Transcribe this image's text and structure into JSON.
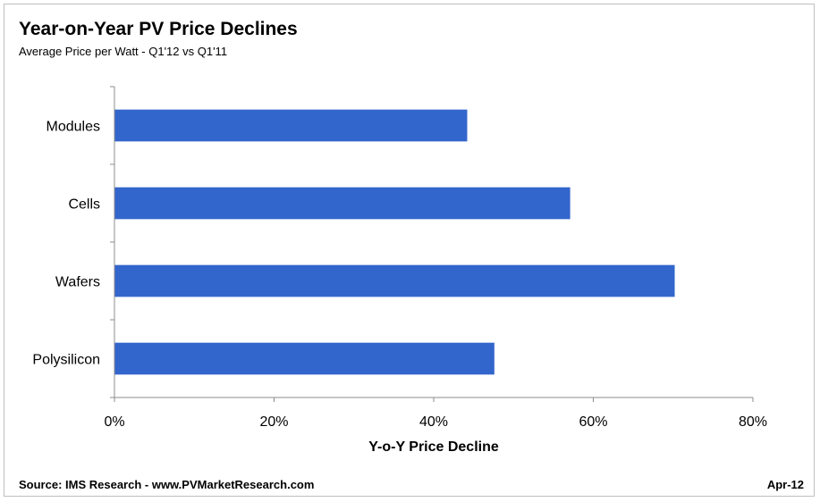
{
  "header": {
    "title": "Year-on-Year PV Price Declines",
    "subtitle": "Average Price per Watt - Q1'12 vs Q1'11"
  },
  "footer": {
    "source": "Source: IMS Research - www.PVMarketResearch.com",
    "date": "Apr-12"
  },
  "chart_data": {
    "type": "bar",
    "orientation": "horizontal",
    "title": "Year-on-Year PV Price Declines",
    "subtitle": "Average Price per Watt - Q1'12 vs Q1'11",
    "categories": [
      "Modules",
      "Cells",
      "Wafers",
      "Polysilicon"
    ],
    "values": [
      44.2,
      57.1,
      70.2,
      47.6
    ],
    "xlabel": "Y-o-Y Price Decline",
    "ylabel": "",
    "xlim": [
      0,
      80
    ],
    "xticks": [
      0,
      20,
      40,
      60,
      80
    ],
    "xtick_labels": [
      "0%",
      "20%",
      "40%",
      "60%",
      "80%"
    ],
    "grid": false,
    "legend": "none",
    "bar_color": "#3366cc"
  }
}
